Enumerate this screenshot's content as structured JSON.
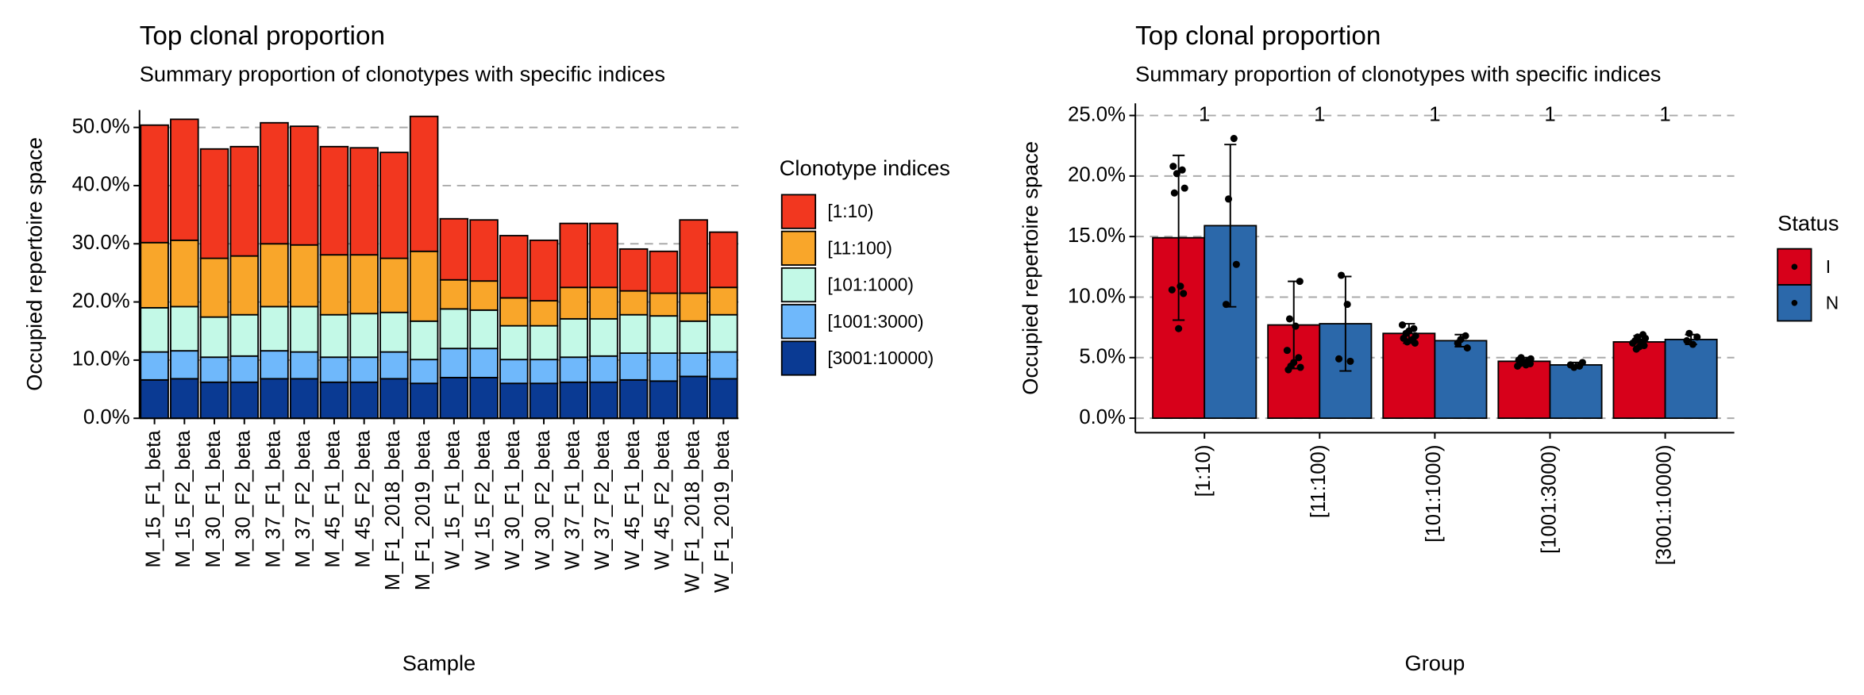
{
  "chart_data": [
    {
      "type": "stacked_bar",
      "title": "Top clonal proportion",
      "subtitle": "Summary proportion of clonotypes with specific indices",
      "xlabel": "Sample",
      "ylabel": "Occupied repertoire space",
      "legend_title": "Clonotype indices",
      "categories": [
        "M_15_F1_beta",
        "M_15_F2_beta",
        "M_30_F1_beta",
        "M_30_F2_beta",
        "M_37_F1_beta",
        "M_37_F2_beta",
        "M_45_F1_beta",
        "M_45_F2_beta",
        "M_F1_2018_beta",
        "M_F1_2019_beta",
        "W_15_F1_beta",
        "W_15_F2_beta",
        "W_30_F1_beta",
        "W_30_F2_beta",
        "W_37_F1_beta",
        "W_37_F2_beta",
        "W_45_F1_beta",
        "W_45_F2_beta",
        "W_F1_2018_beta",
        "W_F1_2019_beta"
      ],
      "series": [
        {
          "name": "[1:10)",
          "color": "#f2371f",
          "values": [
            20.2,
            20.8,
            18.8,
            18.8,
            20.8,
            20.4,
            18.6,
            18.4,
            18.2,
            23.2,
            10.5,
            10.5,
            10.7,
            10.4,
            11.0,
            11.0,
            7.2,
            7.2,
            12.6,
            9.5
          ]
        },
        {
          "name": "[11:100)",
          "color": "#f9a62a",
          "values": [
            11.2,
            11.4,
            10.1,
            10.1,
            10.8,
            10.6,
            10.3,
            10.1,
            9.3,
            12.0,
            5.0,
            5.0,
            4.8,
            4.3,
            5.4,
            5.4,
            4.1,
            3.9,
            4.8,
            4.7
          ]
        },
        {
          "name": "[101:1000)",
          "color": "#c3f9e7",
          "values": [
            7.6,
            7.6,
            6.9,
            7.1,
            7.6,
            7.8,
            7.3,
            7.5,
            6.8,
            6.6,
            6.8,
            6.6,
            5.8,
            5.8,
            6.6,
            6.4,
            6.6,
            6.4,
            5.5,
            6.4
          ]
        },
        {
          "name": "[1001:3000)",
          "color": "#6fb8fb",
          "values": [
            4.8,
            4.8,
            4.3,
            4.5,
            4.8,
            4.6,
            4.3,
            4.3,
            4.6,
            4.1,
            5.0,
            5.0,
            4.1,
            4.1,
            4.3,
            4.5,
            4.6,
            4.8,
            4.0,
            4.6
          ]
        },
        {
          "name": "[3001:10000)",
          "color": "#0a3a93",
          "values": [
            6.6,
            6.8,
            6.2,
            6.2,
            6.8,
            6.8,
            6.2,
            6.2,
            6.8,
            6.0,
            7.0,
            7.0,
            6.0,
            6.0,
            6.2,
            6.2,
            6.6,
            6.4,
            7.2,
            6.8
          ]
        }
      ],
      "ylim": [
        0,
        53
      ],
      "yticks": [
        {
          "value": 0,
          "label": "0.0%"
        },
        {
          "value": 10,
          "label": "10.0%"
        },
        {
          "value": 20,
          "label": "20.0%"
        },
        {
          "value": 30,
          "label": "30.0%"
        },
        {
          "value": 40,
          "label": "40.0%"
        },
        {
          "value": 50,
          "label": "50.0%"
        }
      ],
      "grid": true
    },
    {
      "type": "grouped_bar",
      "title": "Top clonal proportion",
      "subtitle": "Summary proportion of clonotypes with specific indices",
      "xlabel": "Group",
      "ylabel": "Occupied repertoire space",
      "legend_title": "Status",
      "categories": [
        "[1:10)",
        "[11:100)",
        "[101:1000)",
        "[1001:3000)",
        "[3001:10000)"
      ],
      "p_values": [
        1,
        1,
        1,
        1,
        1
      ],
      "series": [
        {
          "name": "I",
          "color": "#d7001a",
          "values": [
            14.9,
            7.7,
            7.0,
            4.7,
            6.3
          ],
          "errors": [
            6.8,
            3.6,
            0.8,
            0.3,
            0.5
          ],
          "points": [
            [
              20.8,
              20.5,
              20.2,
              19.0,
              18.6,
              10.9,
              10.6,
              10.3,
              7.4
            ],
            [
              11.3,
              8.2,
              7.6,
              5.6,
              5.0,
              4.6,
              4.3,
              4.2,
              4.0
            ],
            [
              7.7,
              7.4,
              7.2,
              7.0,
              6.8,
              6.6,
              6.5,
              6.3,
              6.2
            ],
            [
              5.0,
              4.9,
              4.8,
              4.7,
              4.6,
              4.5,
              4.5,
              4.4,
              4.3
            ],
            [
              6.9,
              6.7,
              6.6,
              6.4,
              6.3,
              6.2,
              6.0,
              5.9,
              5.7
            ]
          ]
        },
        {
          "name": "N",
          "color": "#2b68aa",
          "values": [
            15.9,
            7.8,
            6.4,
            4.4,
            6.5
          ],
          "errors": [
            6.7,
            3.9,
            0.5,
            0.2,
            0.4
          ],
          "points": [
            [
              23.1,
              18.1,
              12.7,
              9.4
            ],
            [
              11.8,
              9.4,
              4.9,
              4.7
            ],
            [
              6.8,
              6.5,
              6.2,
              5.8
            ],
            [
              4.6,
              4.4,
              4.3,
              4.2
            ],
            [
              7.0,
              6.7,
              6.4,
              6.1
            ]
          ]
        }
      ],
      "ylim": [
        -1.2,
        26
      ],
      "yticks": [
        {
          "value": 0,
          "label": "0.0%"
        },
        {
          "value": 5,
          "label": "5.0%"
        },
        {
          "value": 10,
          "label": "10.0%"
        },
        {
          "value": 15,
          "label": "15.0%"
        },
        {
          "value": 20,
          "label": "20.0%"
        },
        {
          "value": 25,
          "label": "25.0%"
        }
      ],
      "grid": true
    }
  ]
}
